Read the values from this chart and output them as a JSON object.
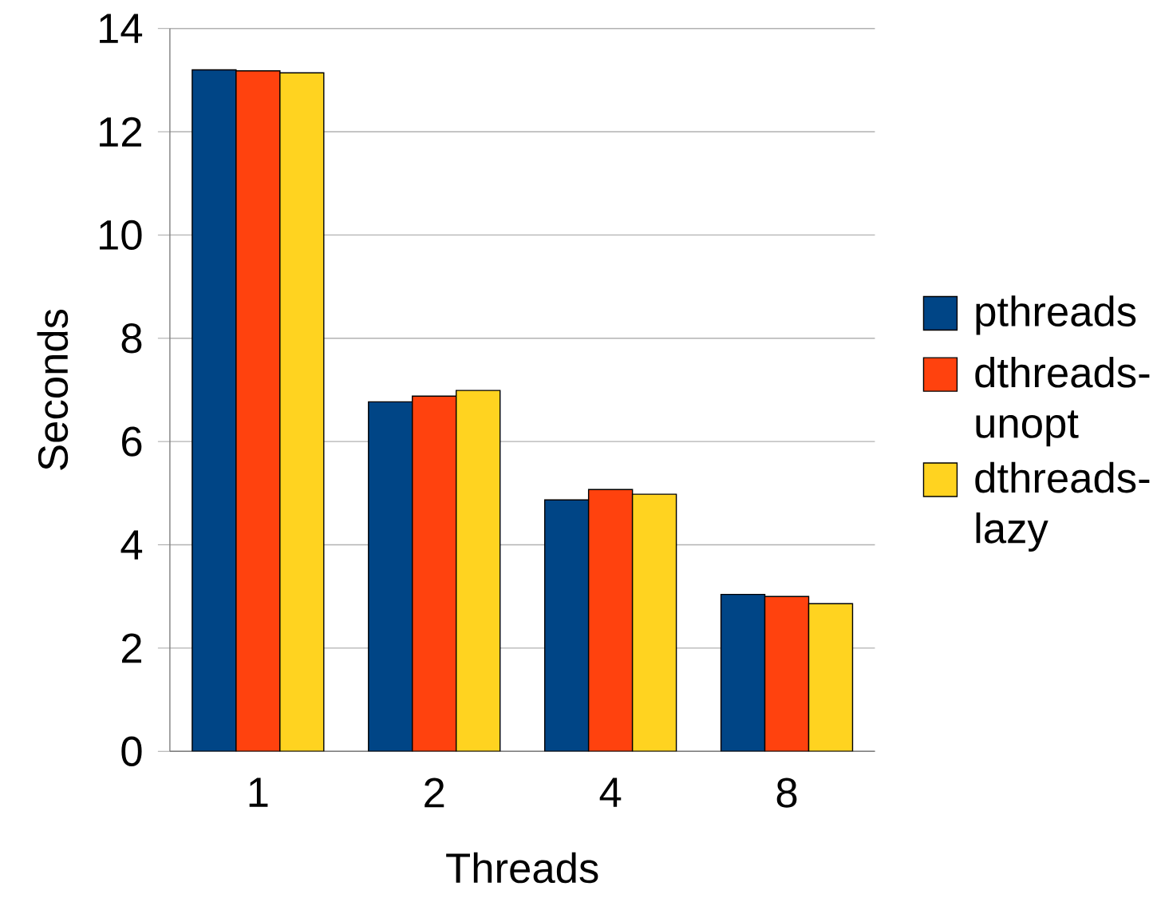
{
  "chart_data": {
    "type": "bar",
    "xlabel": "Threads",
    "ylabel": "Seconds",
    "categories": [
      "1",
      "2",
      "4",
      "8"
    ],
    "series": [
      {
        "name": "pthreads",
        "color": "#004586",
        "values": [
          13.2,
          6.77,
          4.87,
          3.04
        ]
      },
      {
        "name": "dthreads-unopt",
        "color": "#ff420e",
        "values": [
          13.18,
          6.88,
          5.07,
          3.0
        ]
      },
      {
        "name": "dthreads-lazy",
        "color": "#ffd320",
        "values": [
          13.14,
          6.99,
          4.98,
          2.86
        ]
      }
    ],
    "ylim": [
      0,
      14
    ],
    "yticks": [
      0,
      2,
      4,
      6,
      8,
      10,
      12,
      14
    ],
    "grid": "y",
    "legend": "right"
  }
}
